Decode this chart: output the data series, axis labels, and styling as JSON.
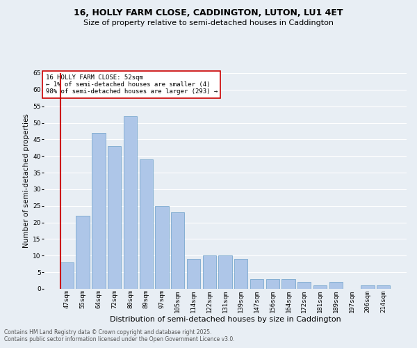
{
  "title": "16, HOLLY FARM CLOSE, CADDINGTON, LUTON, LU1 4ET",
  "subtitle": "Size of property relative to semi-detached houses in Caddington",
  "xlabel": "Distribution of semi-detached houses by size in Caddington",
  "ylabel": "Number of semi-detached properties",
  "categories": [
    "47sqm",
    "55sqm",
    "64sqm",
    "72sqm",
    "80sqm",
    "89sqm",
    "97sqm",
    "105sqm",
    "114sqm",
    "122sqm",
    "131sqm",
    "139sqm",
    "147sqm",
    "156sqm",
    "164sqm",
    "172sqm",
    "181sqm",
    "189sqm",
    "197sqm",
    "206sqm",
    "214sqm"
  ],
  "values": [
    8,
    22,
    47,
    43,
    52,
    39,
    25,
    23,
    9,
    10,
    10,
    9,
    3,
    3,
    3,
    2,
    1,
    2,
    0,
    1,
    1
  ],
  "bar_color": "#aec6e8",
  "bar_edge_color": "#6a9fc8",
  "highlight_bar_index": 0,
  "highlight_line_color": "#cc0000",
  "annotation_text": "16 HOLLY FARM CLOSE: 52sqm\n← 1% of semi-detached houses are smaller (4)\n98% of semi-detached houses are larger (293) →",
  "annotation_box_color": "#ffffff",
  "annotation_box_edge_color": "#cc0000",
  "ylim": [
    0,
    65
  ],
  "yticks": [
    0,
    5,
    10,
    15,
    20,
    25,
    30,
    35,
    40,
    45,
    50,
    55,
    60,
    65
  ],
  "background_color": "#e8eef4",
  "grid_color": "#ffffff",
  "footer_line1": "Contains HM Land Registry data © Crown copyright and database right 2025.",
  "footer_line2": "Contains public sector information licensed under the Open Government Licence v3.0.",
  "title_fontsize": 9,
  "subtitle_fontsize": 8,
  "xlabel_fontsize": 8,
  "ylabel_fontsize": 7.5,
  "tick_fontsize": 6.5,
  "annotation_fontsize": 6.5,
  "footer_fontsize": 5.5
}
